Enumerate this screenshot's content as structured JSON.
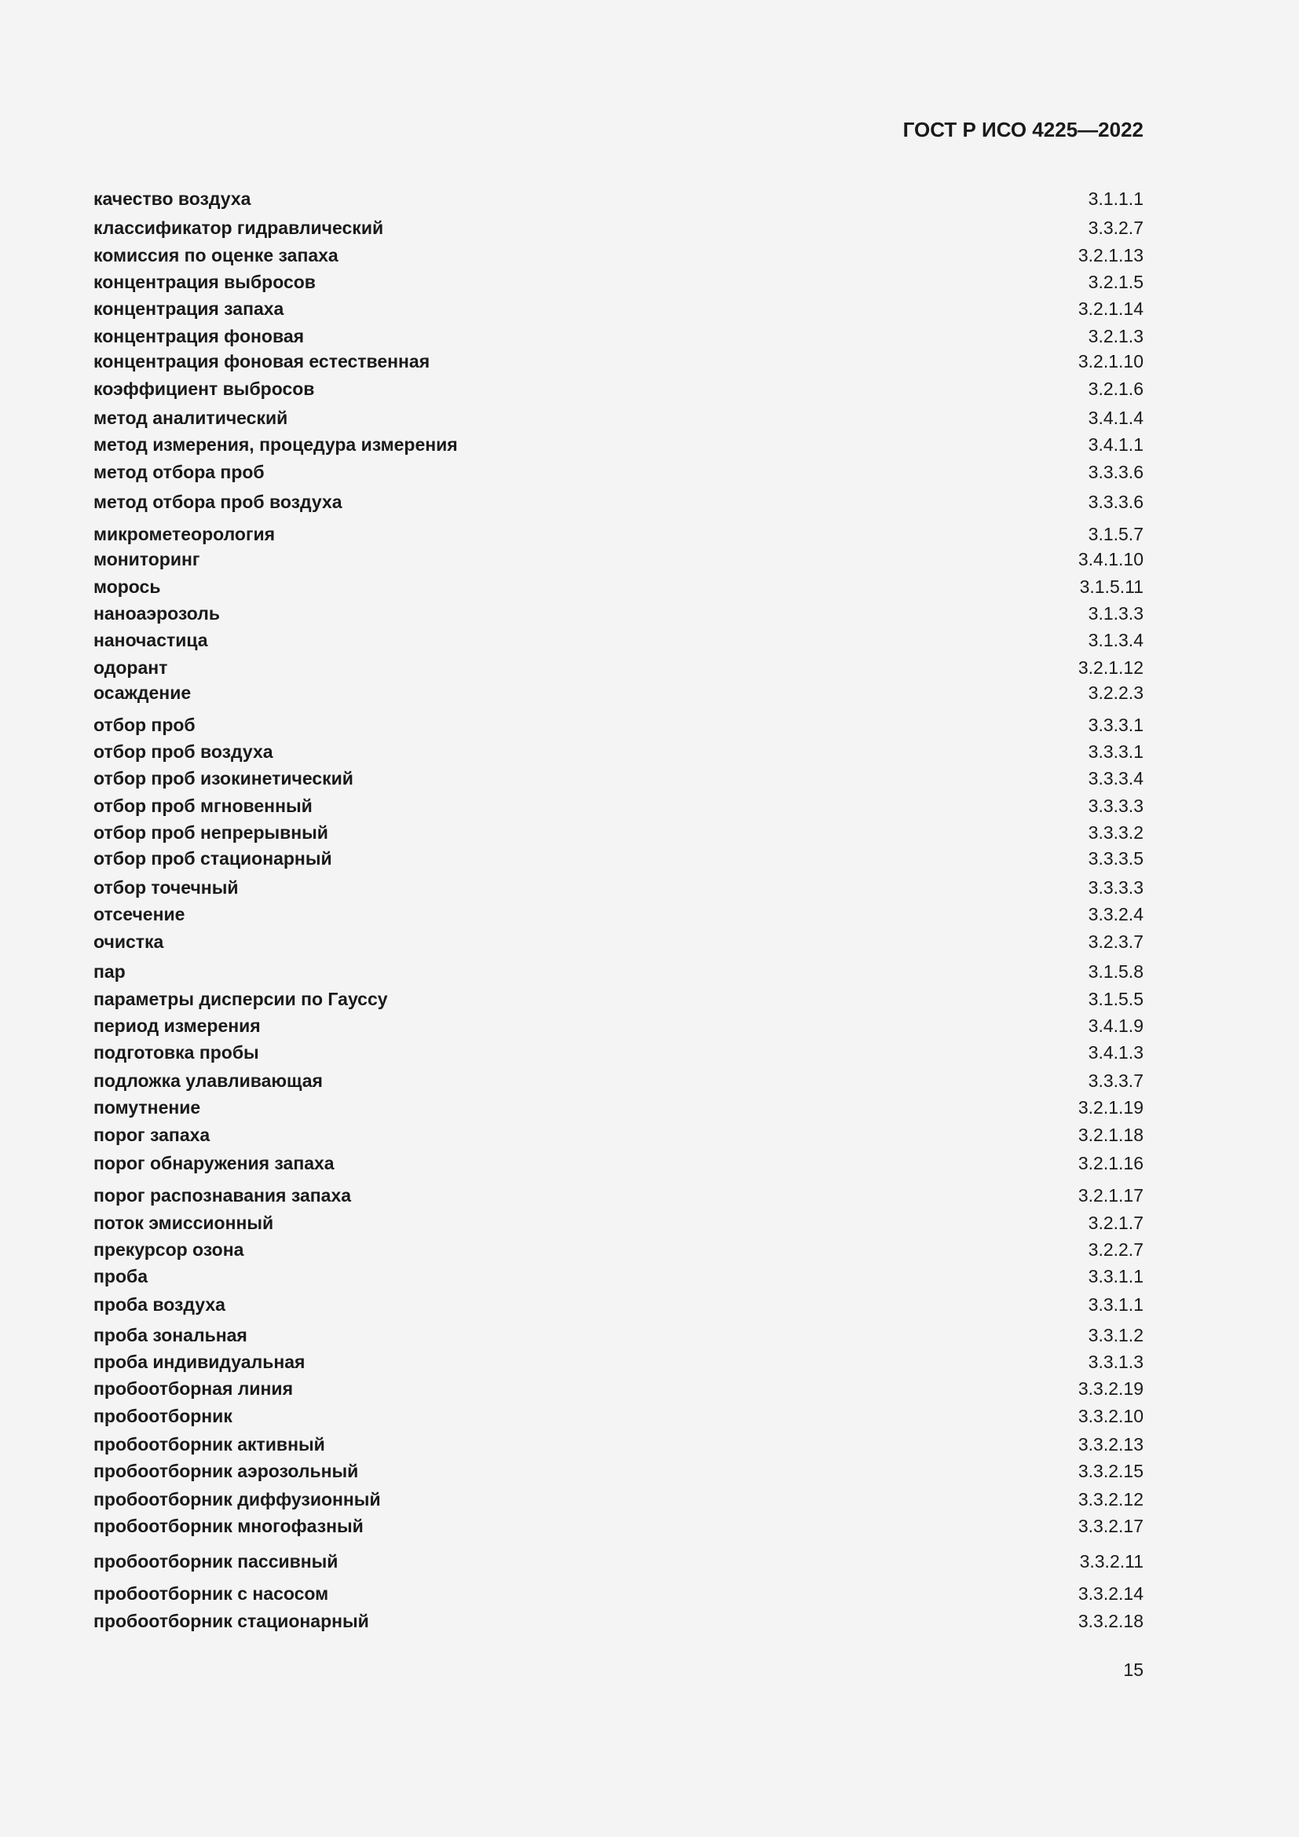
{
  "header": {
    "doc_id": "ГОСТ Р ИСО 4225—2022"
  },
  "entries": [
    {
      "term": "качество воздуха",
      "ref": "3.1.1.1"
    },
    {
      "term": "классификатор гидравлический",
      "ref": "3.3.2.7"
    },
    {
      "term": "комиссия по оценке запаха",
      "ref": "3.2.1.13"
    },
    {
      "term": "концентрация выбросов",
      "ref": "3.2.1.5"
    },
    {
      "term": "концентрация запаха",
      "ref": "3.2.1.14"
    },
    {
      "term": "концентрация фоновая",
      "ref": "3.2.1.3"
    },
    {
      "term": "концентрация фоновая естественная",
      "ref": "3.2.1.10"
    },
    {
      "term": "коэффициент выбросов",
      "ref": "3.2.1.6"
    },
    {
      "term": "метод аналитический",
      "ref": "3.4.1.4"
    },
    {
      "term": "метод измерения, процедура измерения",
      "ref": "3.4.1.1"
    },
    {
      "term": "метод отбора проб",
      "ref": "3.3.3.6"
    },
    {
      "term": "метод отбора проб воздуха",
      "ref": "3.3.3.6"
    },
    {
      "term": "микрометеорология",
      "ref": "3.1.5.7"
    },
    {
      "term": "мониторинг",
      "ref": "3.4.1.10"
    },
    {
      "term": "морось",
      "ref": "3.1.5.11"
    },
    {
      "term": "наноаэрозоль",
      "ref": "3.1.3.3"
    },
    {
      "term": "наночастица",
      "ref": "3.1.3.4"
    },
    {
      "term": "одорант",
      "ref": "3.2.1.12"
    },
    {
      "term": "осаждение",
      "ref": "3.2.2.3"
    },
    {
      "term": "отбор проб",
      "ref": "3.3.3.1"
    },
    {
      "term": "отбор проб воздуха",
      "ref": "3.3.3.1"
    },
    {
      "term": "отбор проб изокинетический",
      "ref": "3.3.3.4"
    },
    {
      "term": "отбор проб мгновенный",
      "ref": "3.3.3.3"
    },
    {
      "term": "отбор проб непрерывный",
      "ref": "3.3.3.2"
    },
    {
      "term": "отбор проб стационарный",
      "ref": "3.3.3.5"
    },
    {
      "term": "отбор точечный",
      "ref": "3.3.3.3"
    },
    {
      "term": "отсечение",
      "ref": "3.3.2.4"
    },
    {
      "term": "очистка",
      "ref": "3.2.3.7"
    },
    {
      "term": "пар",
      "ref": "3.1.5.8"
    },
    {
      "term": "параметры дисперсии по Гауссу",
      "ref": "3.1.5.5"
    },
    {
      "term": "период измерения",
      "ref": "3.4.1.9"
    },
    {
      "term": "подготовка пробы",
      "ref": "3.4.1.3"
    },
    {
      "term": "подложка улавливающая",
      "ref": "3.3.3.7"
    },
    {
      "term": "помутнение",
      "ref": "3.2.1.19"
    },
    {
      "term": "порог запаха",
      "ref": "3.2.1.18"
    },
    {
      "term": "порог обнаружения запаха",
      "ref": "3.2.1.16"
    },
    {
      "term": "порог распознавания запаха",
      "ref": "3.2.1.17"
    },
    {
      "term": "поток эмиссионный",
      "ref": "3.2.1.7"
    },
    {
      "term": "прекурсор озона",
      "ref": "3.2.2.7"
    },
    {
      "term": "проба",
      "ref": "3.3.1.1"
    },
    {
      "term": "проба воздуха",
      "ref": "3.3.1.1"
    },
    {
      "term": "проба зональная",
      "ref": "3.3.1.2"
    },
    {
      "term": "проба индивидуальная",
      "ref": "3.3.1.3"
    },
    {
      "term": "пробоотборная линия",
      "ref": "3.3.2.19"
    },
    {
      "term": "пробоотборник",
      "ref": "3.3.2.10"
    },
    {
      "term": "пробоотборник активный",
      "ref": "3.3.2.13"
    },
    {
      "term": "пробоотборник аэрозольный",
      "ref": "3.3.2.15"
    },
    {
      "term": "пробоотборник диффузионный",
      "ref": "3.3.2.12"
    },
    {
      "term": "пробоотборник многофазный",
      "ref": "3.3.2.17"
    },
    {
      "term": "пробоотборник пассивный",
      "ref": "3.3.2.11"
    },
    {
      "term": "пробоотборник с насосом",
      "ref": "3.3.2.14"
    },
    {
      "term": "пробоотборник стационарный",
      "ref": "3.3.2.18"
    }
  ],
  "footer": {
    "page_number": "15"
  }
}
